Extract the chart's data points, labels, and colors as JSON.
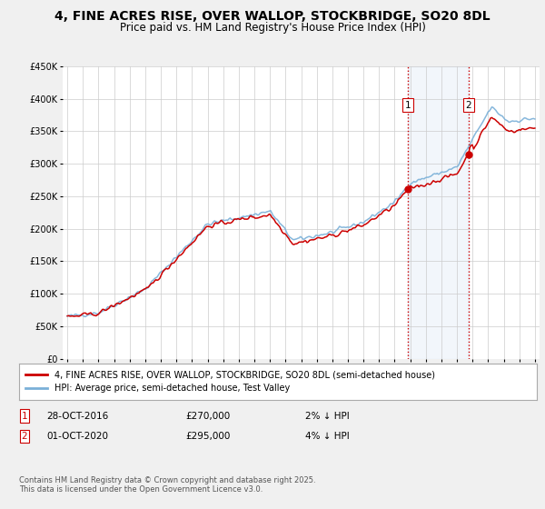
{
  "title": "4, FINE ACRES RISE, OVER WALLOP, STOCKBRIDGE, SO20 8DL",
  "subtitle": "Price paid vs. HM Land Registry's House Price Index (HPI)",
  "ylabel_ticks": [
    "£0",
    "£50K",
    "£100K",
    "£150K",
    "£200K",
    "£250K",
    "£300K",
    "£350K",
    "£400K",
    "£450K"
  ],
  "ytick_values": [
    0,
    50000,
    100000,
    150000,
    200000,
    250000,
    300000,
    350000,
    400000,
    450000
  ],
  "ylim": [
    0,
    450000
  ],
  "xlim_start": 1994.7,
  "xlim_end": 2025.3,
  "xticks": [
    1995,
    1996,
    1997,
    1998,
    1999,
    2000,
    2001,
    2002,
    2003,
    2004,
    2005,
    2006,
    2007,
    2008,
    2009,
    2010,
    2011,
    2012,
    2013,
    2014,
    2015,
    2016,
    2017,
    2018,
    2019,
    2020,
    2021,
    2022,
    2023,
    2024,
    2025
  ],
  "hpi_color": "#7ab0d8",
  "price_color": "#cc0000",
  "vline_color": "#cc0000",
  "sale1_year": 2016.83,
  "sale1_price": 270000,
  "sale1_label": "1",
  "sale2_year": 2020.75,
  "sale2_price": 295000,
  "sale2_label": "2",
  "legend_line1": "4, FINE ACRES RISE, OVER WALLOP, STOCKBRIDGE, SO20 8DL (semi-detached house)",
  "legend_line2": "HPI: Average price, semi-detached house, Test Valley",
  "footnote": "Contains HM Land Registry data © Crown copyright and database right 2025.\nThis data is licensed under the Open Government Licence v3.0.",
  "background_color": "#f0f0f0",
  "plot_bg_color": "#ffffff",
  "title_fontsize": 10,
  "subtitle_fontsize": 8.5,
  "tick_fontsize": 7,
  "legend_fontsize": 7,
  "footnote_fontsize": 6
}
